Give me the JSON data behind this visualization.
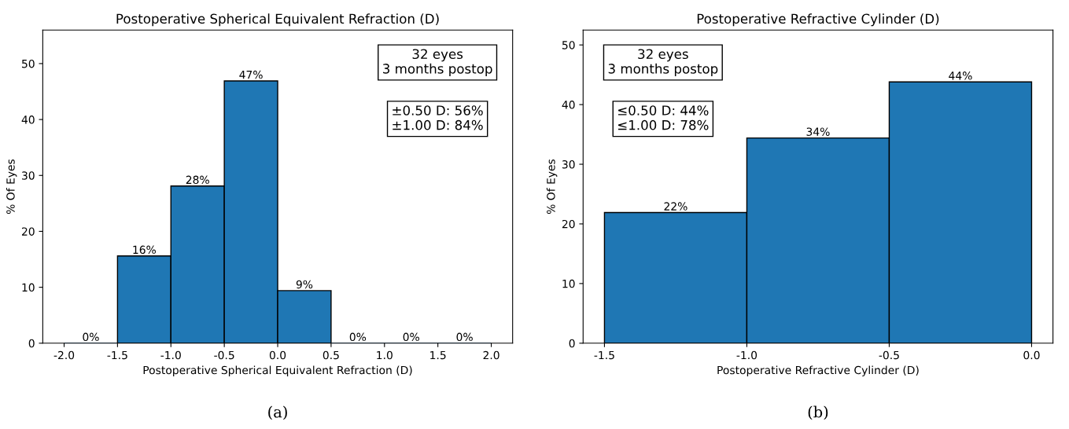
{
  "chart_data": [
    {
      "type": "histogram",
      "title": "Postoperative Spherical Equivalent Refraction (D)",
      "xlabel": "Postoperative Spherical Equivalent Refraction (D)",
      "ylabel": "% Of Eyes",
      "bins": [
        -2.0,
        -1.5,
        -1.0,
        -0.5,
        0.0,
        0.5,
        1.0,
        1.5,
        2.0
      ],
      "values": [
        0,
        15.6,
        28.1,
        46.9,
        9.4,
        0,
        0,
        0
      ],
      "value_labels": [
        "0%",
        "16%",
        "28%",
        "47%",
        "9%",
        "0%",
        "0%",
        "0%"
      ],
      "color": "#1f77b4",
      "xlim": [
        -2.2,
        2.2
      ],
      "ylim": [
        0,
        56
      ],
      "xticks": [
        {
          "value": -2,
          "label": "-2.0"
        },
        -1.5,
        {
          "value": -1,
          "label": "-1.0"
        },
        -0.5,
        {
          "value": 0,
          "label": "0.0"
        },
        0.5,
        {
          "value": 1,
          "label": "1.0"
        },
        1.5,
        {
          "value": 2,
          "label": "2.0"
        }
      ],
      "yticks": [
        0,
        10,
        20,
        30,
        40,
        50
      ],
      "grid": false,
      "annotations": [
        "32 eyes\n3 months postop",
        "±0.50 D: 56%\n±1.00 D: 84%",
        "(a)"
      ]
    },
    {
      "type": "histogram",
      "title": "Postoperative Refractive Cylinder (D)",
      "xlabel": "Postoperative Refractive Cylinder (D)",
      "ylabel": "% Of Eyes",
      "bins": [
        -1.5,
        -1.0,
        -0.5,
        0.0
      ],
      "values": [
        21.9,
        34.4,
        43.8
      ],
      "value_labels": [
        "22%",
        "34%",
        "44%"
      ],
      "color": "#1f77b4",
      "xlim": [
        -1.575,
        0.075
      ],
      "ylim": [
        0,
        52.5
      ],
      "xticks": [
        -1.5,
        {
          "value": -1,
          "label": "-1.0"
        },
        -0.5,
        {
          "value": 0,
          "label": "0.0"
        }
      ],
      "yticks": [
        0,
        10,
        20,
        30,
        40,
        50
      ],
      "grid": false,
      "annotations": [
        "32 eyes\n3 months postop",
        "≤0.50 D: 44%\n≤1.00 D: 78%",
        "(b)"
      ]
    }
  ]
}
